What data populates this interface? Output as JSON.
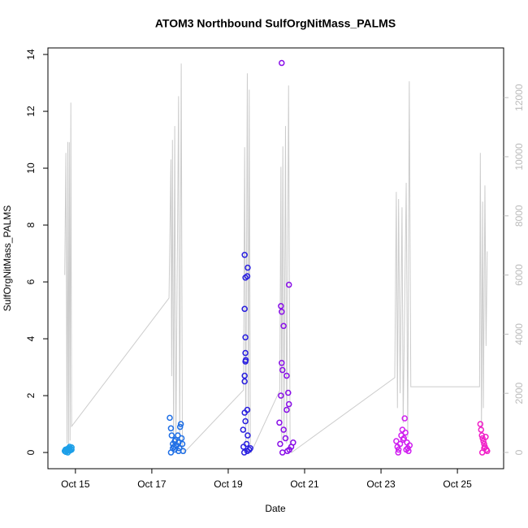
{
  "chart_data": {
    "type": "scatter",
    "title": "ATOM3 Northbound SulfOrgNitMass_PALMS",
    "x_label": "Date",
    "y_label": "SulfOrgNitMass_PALMS",
    "xlim": [
      14.28,
      26.21
    ],
    "xticks": [
      {
        "value": 15,
        "label": "Oct 15"
      },
      {
        "value": 17,
        "label": "Oct 17"
      },
      {
        "value": 19,
        "label": "Oct 19"
      },
      {
        "value": 21,
        "label": "Oct 21"
      },
      {
        "value": 23,
        "label": "Oct 23"
      },
      {
        "value": 25,
        "label": "Oct 25"
      }
    ],
    "ylim": [
      -0.57,
      14.23
    ],
    "yticks": [
      0,
      2,
      4,
      6,
      8,
      10,
      12,
      14
    ],
    "y2lim": [
      -550,
      13680
    ],
    "y2ticks": [
      0,
      2000,
      4000,
      6000,
      8000,
      10000,
      12000
    ],
    "series": [
      {
        "style": "line",
        "axis": "y2",
        "color": "#cccccc",
        "x": [
          14.72,
          14.75,
          14.78,
          14.8,
          14.82,
          14.84,
          14.86,
          14.88,
          14.9,
          17.45,
          17.5,
          17.52,
          17.54,
          17.57,
          17.6,
          17.63,
          17.7,
          17.73,
          17.77,
          17.8,
          17.85,
          19.4,
          19.43,
          19.46,
          19.5,
          19.53,
          19.55,
          19.58,
          19.6,
          20.35,
          20.38,
          20.4,
          20.43,
          20.46,
          20.5,
          20.53,
          20.58,
          20.62,
          20.66,
          23.36,
          23.4,
          23.43,
          23.46,
          23.5,
          23.55,
          23.58,
          23.66,
          23.7,
          23.74,
          23.78,
          25.58,
          25.6,
          25.63,
          25.66,
          25.68,
          25.72,
          25.75,
          25.78
        ],
        "values": [
          6000,
          10130,
          300,
          10500,
          200,
          10490,
          400,
          11830,
          880,
          5220,
          9910,
          2580,
          10570,
          300,
          11040,
          200,
          12050,
          300,
          13150,
          200,
          0,
          2110,
          10320,
          200,
          12820,
          300,
          12270,
          200,
          0,
          2100,
          9660,
          300,
          10350,
          500,
          11040,
          300,
          12410,
          200,
          0,
          2530,
          8810,
          1500,
          8570,
          2000,
          8290,
          1000,
          9120,
          500,
          12550,
          2220,
          2220,
          10130,
          800,
          8480,
          1500,
          9030,
          3600,
          6800
        ]
      },
      {
        "style": "points",
        "color": "#1c9fe8",
        "x": [
          14.72,
          14.74,
          14.76,
          14.78,
          14.8,
          14.82,
          14.84,
          14.86,
          14.88,
          14.9,
          14.75,
          14.8,
          14.85,
          14.9
        ],
        "values": [
          0.05,
          0.1,
          0.08,
          0.12,
          0.06,
          0.15,
          0.1,
          0.07,
          0.13,
          0.18,
          0.02,
          0.0,
          0.2,
          0.1
        ]
      },
      {
        "style": "points",
        "color": "#1f6fe5",
        "x": [
          17.47,
          17.5,
          17.52,
          17.55,
          17.58,
          17.6,
          17.62,
          17.65,
          17.68,
          17.7,
          17.72,
          17.74,
          17.76,
          17.78,
          17.8,
          17.82,
          17.5,
          17.6,
          17.7,
          17.55
        ],
        "values": [
          1.22,
          0.85,
          0.6,
          0.3,
          0.2,
          0.1,
          0.45,
          0.25,
          0.6,
          0.35,
          0.15,
          0.9,
          1.0,
          0.5,
          0.3,
          0.05,
          0.0,
          0.4,
          0.05,
          0.15
        ]
      },
      {
        "style": "points",
        "color": "#2a20e0",
        "x": [
          19.43,
          19.51,
          19.5,
          19.45,
          19.43,
          19.45,
          19.45,
          19.46,
          19.45,
          19.43,
          19.43,
          19.5,
          19.43,
          19.45,
          19.39,
          19.51,
          19.4,
          19.48,
          19.55,
          19.42,
          19.5,
          19.58
        ],
        "values": [
          6.95,
          6.5,
          6.2,
          6.15,
          5.05,
          4.05,
          3.5,
          3.25,
          3.2,
          2.7,
          2.5,
          1.5,
          1.4,
          1.1,
          0.8,
          0.6,
          0.2,
          0.3,
          0.1,
          0.0,
          0.05,
          0.15
        ]
      },
      {
        "style": "points",
        "color": "#8a10e8",
        "x": [
          20.4,
          20.59,
          20.38,
          20.4,
          20.45,
          20.4,
          20.42,
          20.53,
          20.57,
          20.38,
          20.59,
          20.53,
          20.34,
          20.45,
          20.5,
          20.36,
          20.6,
          20.65,
          20.42,
          20.55,
          20.7
        ],
        "values": [
          13.7,
          5.9,
          5.15,
          4.95,
          4.45,
          3.15,
          2.9,
          2.7,
          2.1,
          2.0,
          1.7,
          1.5,
          1.05,
          0.8,
          0.5,
          0.3,
          0.1,
          0.2,
          0.0,
          0.05,
          0.35
        ]
      },
      {
        "style": "points",
        "color": "#d020f0",
        "x": [
          23.62,
          23.4,
          23.43,
          23.46,
          23.5,
          23.53,
          23.56,
          23.6,
          23.64,
          23.68,
          23.7,
          23.72,
          23.75,
          23.45,
          23.58,
          23.66
        ],
        "values": [
          1.2,
          0.4,
          0.2,
          0.1,
          0.3,
          0.6,
          0.8,
          0.5,
          0.7,
          0.35,
          0.15,
          0.05,
          0.25,
          0.0,
          0.45,
          0.1
        ]
      },
      {
        "style": "points",
        "color": "#f020c8",
        "x": [
          25.6,
          25.62,
          25.64,
          25.66,
          25.68,
          25.7,
          25.72,
          25.74,
          25.76,
          25.78,
          25.65,
          25.7
        ],
        "values": [
          1.0,
          0.8,
          0.6,
          0.5,
          0.4,
          0.3,
          0.2,
          0.55,
          0.1,
          0.05,
          0.0,
          0.15
        ]
      }
    ]
  }
}
